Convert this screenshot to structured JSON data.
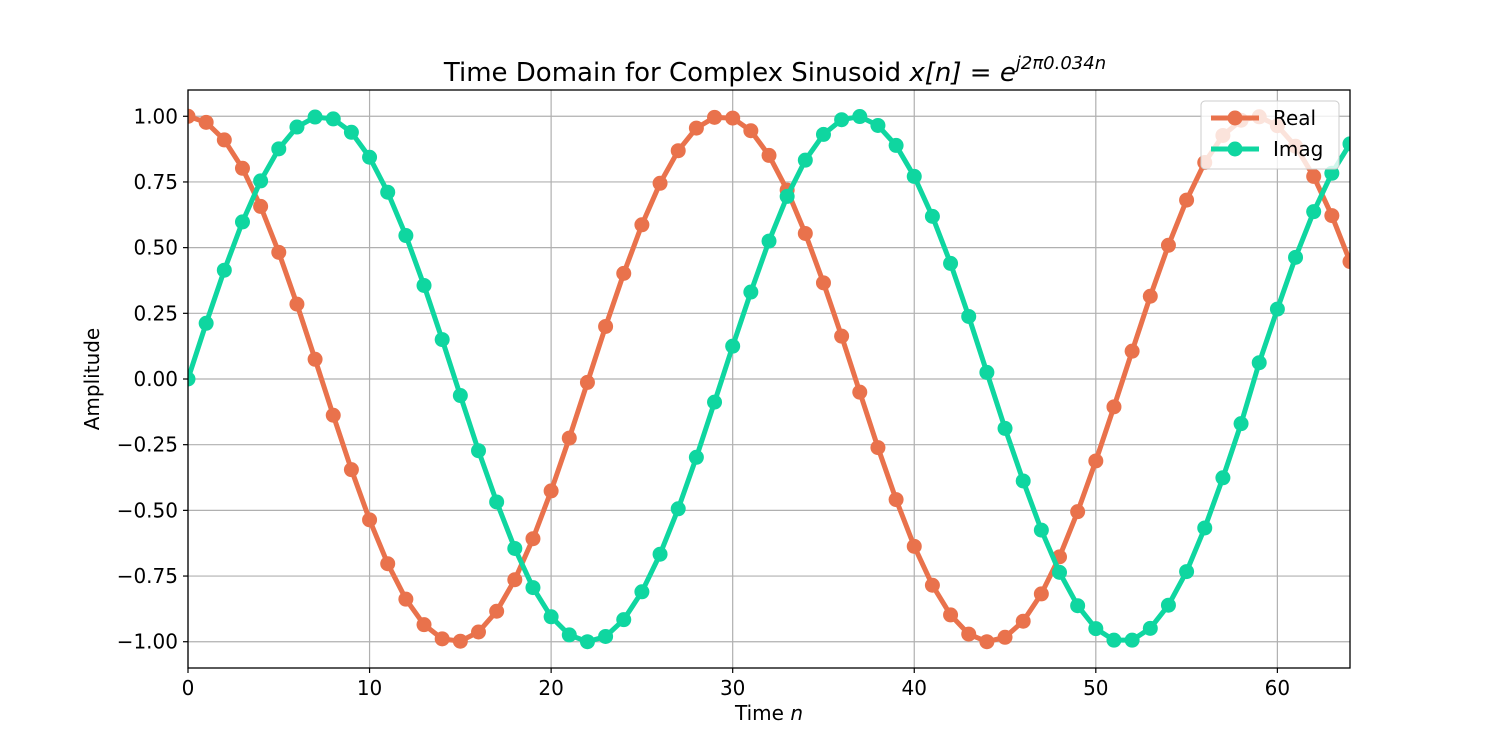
{
  "chart_data": {
    "type": "line",
    "title": "Time Domain for Complex Sinusoid x[n] = e^{j2π0.034n}",
    "title_parts": {
      "prefix": "Time Domain for Complex Sinusoid ",
      "lhs": "x[n]",
      "equals": " = ",
      "base": "e",
      "exponent": "j2π0.034n"
    },
    "xlabel": "Time n",
    "xlabel_parts": {
      "text": "Time ",
      "var": "n"
    },
    "ylabel": "Amplitude",
    "xlim": [
      0,
      64
    ],
    "ylim": [
      -1.1,
      1.1
    ],
    "xticks": [
      0,
      10,
      20,
      30,
      40,
      50,
      60
    ],
    "xtick_labels": [
      "0",
      "10",
      "20",
      "30",
      "40",
      "50",
      "60"
    ],
    "yticks": [
      1.0,
      0.75,
      0.5,
      0.25,
      0.0,
      -0.25,
      -0.5,
      -0.75,
      -1.0
    ],
    "ytick_labels": [
      "1.00",
      "0.75",
      "0.50",
      "0.25",
      "0.00",
      "−0.25",
      "−0.50",
      "−0.75",
      "−1.00"
    ],
    "grid": true,
    "legend_position": "upper right",
    "x": [
      0,
      1,
      2,
      3,
      4,
      5,
      6,
      7,
      8,
      9,
      10,
      11,
      12,
      13,
      14,
      15,
      16,
      17,
      18,
      19,
      20,
      21,
      22,
      23,
      24,
      25,
      26,
      27,
      28,
      29,
      30,
      31,
      32,
      33,
      34,
      35,
      36,
      37,
      38,
      39,
      40,
      41,
      42,
      43,
      44,
      45,
      46,
      47,
      48,
      49,
      50,
      51,
      52,
      53,
      54,
      55,
      56,
      57,
      58,
      59,
      60,
      61,
      62,
      63,
      64
    ],
    "series": [
      {
        "name": "Real",
        "color": "#e9724c",
        "marker": "circle",
        "values": [
          1.0,
          0.977,
          0.91,
          0.802,
          0.657,
          0.482,
          0.285,
          0.075,
          -0.138,
          -0.345,
          -0.536,
          -0.703,
          -0.838,
          -0.935,
          -0.989,
          -0.998,
          -0.963,
          -0.884,
          -0.764,
          -0.608,
          -0.426,
          -0.225,
          -0.013,
          0.2,
          0.402,
          0.587,
          0.745,
          0.869,
          0.955,
          0.996,
          0.993,
          0.945,
          0.851,
          0.719,
          0.554,
          0.366,
          0.163,
          -0.05,
          -0.261,
          -0.459,
          -0.637,
          -0.785,
          -0.898,
          -0.971,
          -1.0,
          -0.983,
          -0.922,
          -0.818,
          -0.677,
          -0.505,
          -0.312,
          -0.106,
          0.106,
          0.315,
          0.509,
          0.681,
          0.824,
          0.927,
          0.985,
          0.998,
          0.964,
          0.886,
          0.771,
          0.622,
          0.447
        ]
      },
      {
        "name": "Imag",
        "color": "#0fd6a0",
        "marker": "circle",
        "values": [
          0.0,
          0.212,
          0.414,
          0.598,
          0.754,
          0.876,
          0.959,
          0.997,
          0.99,
          0.939,
          0.844,
          0.711,
          0.546,
          0.356,
          0.15,
          -0.063,
          -0.273,
          -0.468,
          -0.645,
          -0.794,
          -0.905,
          -0.974,
          -1.0,
          -0.98,
          -0.916,
          -0.81,
          -0.667,
          -0.494,
          -0.298,
          -0.088,
          0.125,
          0.331,
          0.525,
          0.695,
          0.833,
          0.931,
          0.987,
          0.999,
          0.965,
          0.889,
          0.771,
          0.619,
          0.44,
          0.238,
          0.025,
          -0.188,
          -0.388,
          -0.575,
          -0.736,
          -0.863,
          -0.95,
          -0.994,
          -0.994,
          -0.949,
          -0.861,
          -0.733,
          -0.567,
          -0.376,
          -0.17,
          0.062,
          0.266,
          0.463,
          0.637,
          0.783,
          0.895
        ]
      }
    ]
  }
}
